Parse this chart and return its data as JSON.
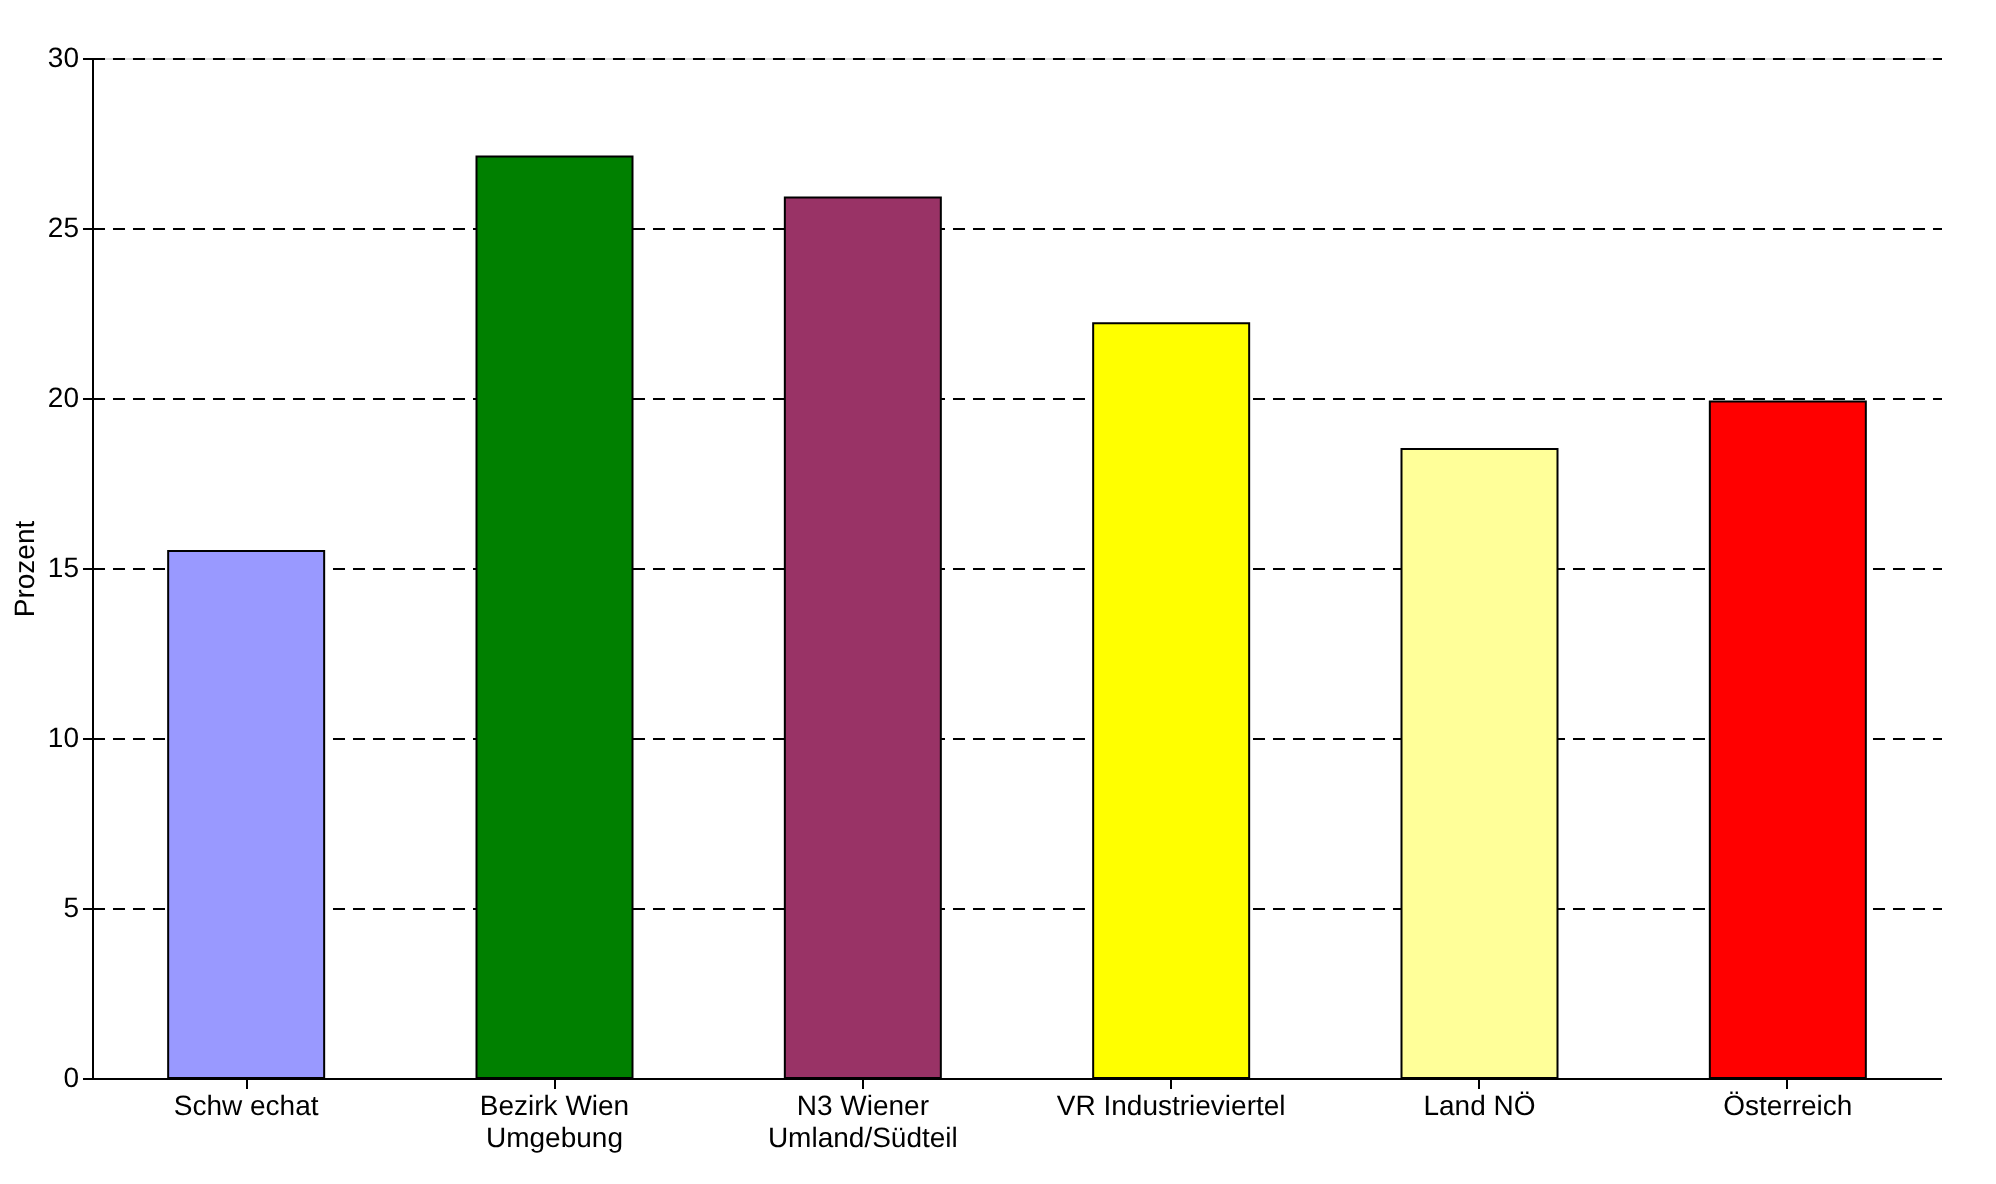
{
  "chart_data": {
    "type": "bar",
    "ylabel": "Prozent",
    "categories": [
      "Schw echat",
      "Bezirk Wien\nUmgebung",
      "N3 Wiener\nUmland/Südteil",
      "VR Industrieviertel",
      "Land NÖ",
      "Österreich"
    ],
    "values": [
      15.5,
      27.1,
      25.9,
      22.2,
      18.5,
      19.9
    ],
    "colors": [
      "#9999ff",
      "#008000",
      "#993366",
      "#ffff00",
      "#ffff99",
      "#ff0000"
    ],
    "ylim": [
      0,
      30
    ],
    "yticks": [
      0,
      5,
      10,
      15,
      20,
      25,
      30
    ],
    "grid": "y",
    "legend": false
  }
}
